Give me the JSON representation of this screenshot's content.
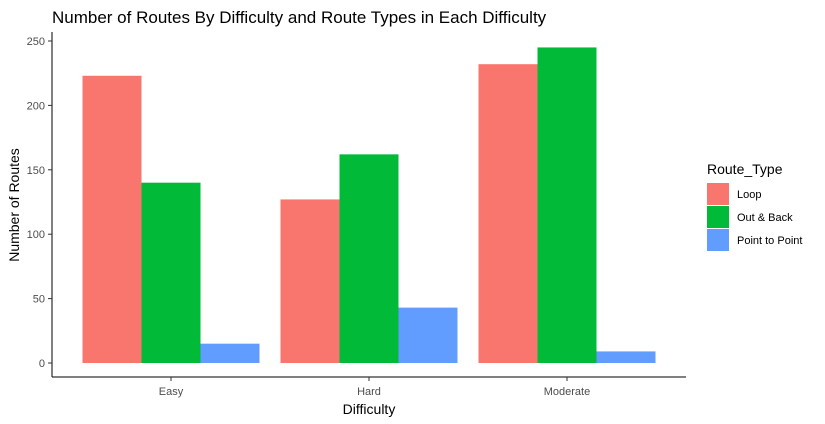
{
  "chart_data": {
    "type": "bar",
    "title": "Number of Routes By Difficulty and Route Types in Each Difficulty",
    "xlabel": "Difficulty",
    "ylabel": "Number of Routes",
    "categories": [
      "Easy",
      "Hard",
      "Moderate"
    ],
    "series": [
      {
        "name": "Loop",
        "color": "#F8766D",
        "values": [
          223,
          127,
          232
        ]
      },
      {
        "name": "Out & Back",
        "color": "#00BA38",
        "values": [
          140,
          162,
          245
        ]
      },
      {
        "name": "Point to Point",
        "color": "#619CFF",
        "values": [
          15,
          43,
          9
        ]
      }
    ],
    "ylim": [
      0,
      260
    ],
    "yticks": [
      0,
      50,
      100,
      150,
      200,
      250
    ],
    "legend": {
      "title": "Route_Type",
      "position": "right"
    },
    "grid": false
  }
}
